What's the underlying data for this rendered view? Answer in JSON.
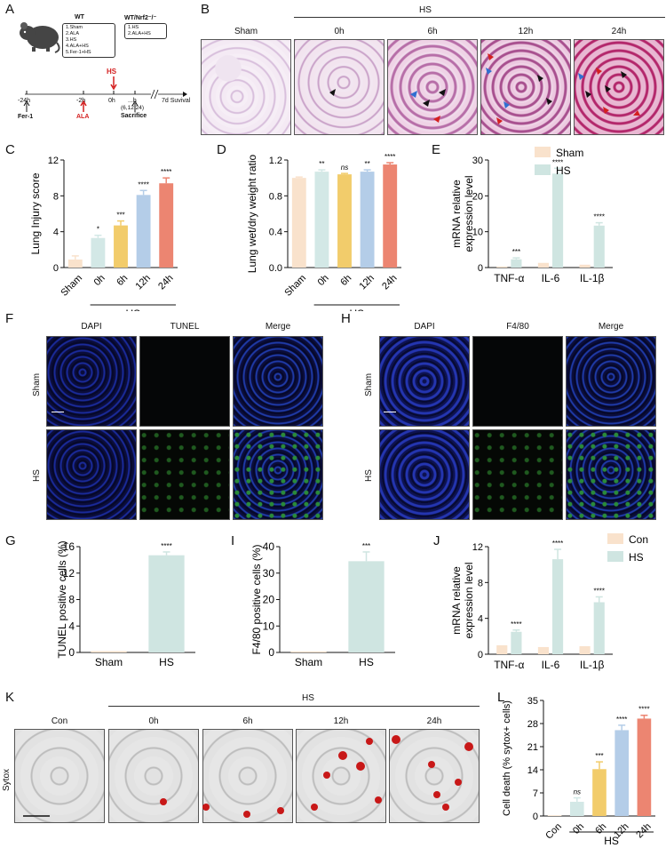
{
  "panel_labels": [
    "A",
    "B",
    "C",
    "D",
    "E",
    "F",
    "G",
    "H",
    "I",
    "J",
    "K",
    "L"
  ],
  "panel_a": {
    "wt_title": "WT",
    "wt_groups": [
      "1.Sham",
      "2.ALA",
      "3.HS",
      "4.ALA+HS",
      "5.Fer-1+HS"
    ],
    "ko_title": "WT/Nrf2⁻/⁻",
    "ko_groups": [
      "1.HS",
      "2.ALA+HS"
    ],
    "timeline_ticks": [
      "-24h",
      "-2h",
      "0h",
      "...h"
    ],
    "hs_marker": "HS",
    "fer1": "Fer-1",
    "ala": "ALA",
    "sacrifice_times": "(6,12,24)",
    "sacrifice": "Sacrifice",
    "survival": "7d Suvival"
  },
  "panel_b": {
    "group_label": "HS",
    "columns": [
      "Sham",
      "0h",
      "6h",
      "12h",
      "24h"
    ]
  },
  "colors": {
    "sham": "#f9e2cc",
    "h0": "#d3e8e6",
    "h6": "#f2cc6b",
    "h12": "#b4cde8",
    "h24": "#ec8571",
    "hs": "#cfe5e1",
    "black": "#111111"
  },
  "chart_data": [
    {
      "type": "bar",
      "panel": "C",
      "ylabel": "Lung Injury score",
      "ylim": [
        0,
        12
      ],
      "yticks": [
        "0",
        "4",
        "8",
        "12"
      ],
      "categories": [
        "Sham",
        "0h",
        "6h",
        "12h",
        "24h"
      ],
      "values": [
        0.9,
        3.3,
        4.7,
        8.1,
        9.4
      ],
      "errors": [
        0.4,
        0.3,
        0.5,
        0.5,
        0.6
      ],
      "sig": [
        "",
        "*",
        "***",
        "****",
        "****"
      ],
      "group_label": "HS"
    },
    {
      "type": "bar",
      "panel": "D",
      "ylabel": "Lung wet/dry weight ratio",
      "ylim": [
        0,
        1.2
      ],
      "yticks": [
        "0.0",
        "0.4",
        "0.8",
        "1.2"
      ],
      "categories": [
        "Sham",
        "0h",
        "6h",
        "12h",
        "24h"
      ],
      "values": [
        1.0,
        1.07,
        1.04,
        1.07,
        1.15
      ],
      "errors": [
        0.01,
        0.02,
        0.01,
        0.02,
        0.02
      ],
      "sig": [
        "",
        "**",
        "ns",
        "**",
        "****"
      ],
      "group_label": "HS"
    },
    {
      "type": "bar",
      "panel": "E",
      "ylabel": "mRNA relative expression level",
      "ylim": [
        0,
        30
      ],
      "yticks": [
        "0",
        "10",
        "20",
        "30"
      ],
      "categories": [
        "TNF-α",
        "IL-6",
        "IL-1β"
      ],
      "series": [
        {
          "name": "Sham",
          "values": [
            0.3,
            1.3,
            0.8
          ]
        },
        {
          "name": "HS",
          "values": [
            2.3,
            26.2,
            11.7
          ]
        }
      ],
      "errors": [
        0.4,
        1.5,
        0.8
      ],
      "sig": [
        "***",
        "****",
        "****"
      ]
    },
    {
      "type": "bar",
      "panel": "G",
      "ylabel": "TUNEL positive cells (%)",
      "ylim": [
        0,
        16
      ],
      "yticks": [
        "0",
        "4",
        "8",
        "12",
        "16"
      ],
      "categories": [
        "Sham",
        "HS"
      ],
      "values": [
        0.2,
        14.7
      ],
      "errors": [
        0,
        0.5
      ],
      "sig": [
        "",
        "****"
      ]
    },
    {
      "type": "bar",
      "panel": "I",
      "ylabel": "F4/80 positive cells (%)",
      "ylim": [
        0,
        40
      ],
      "yticks": [
        "0",
        "10",
        "20",
        "30",
        "40"
      ],
      "categories": [
        "Sham",
        "HS"
      ],
      "values": [
        0.4,
        34.5
      ],
      "errors": [
        0,
        3.5
      ],
      "sig": [
        "",
        "***"
      ]
    },
    {
      "type": "bar",
      "panel": "J",
      "ylabel": "mRNA relative expression level",
      "ylim": [
        0,
        12
      ],
      "yticks": [
        "0",
        "4",
        "8",
        "12"
      ],
      "categories": [
        "TNF-α",
        "IL-6",
        "IL-1β"
      ],
      "series": [
        {
          "name": "Con",
          "values": [
            1.0,
            0.8,
            0.9
          ]
        },
        {
          "name": "HS",
          "values": [
            2.5,
            10.6,
            5.8
          ]
        }
      ],
      "errors": [
        0.2,
        1.1,
        0.6
      ],
      "sig": [
        "****",
        "****",
        "****"
      ]
    },
    {
      "type": "bar",
      "panel": "L",
      "ylabel": "Cell death (% sytox+ cells)",
      "ylim": [
        0,
        35
      ],
      "yticks": [
        "0",
        "7",
        "14",
        "21",
        "28",
        "35"
      ],
      "categories": [
        "Con",
        "0h",
        "6h",
        "12h",
        "24h"
      ],
      "values": [
        0.2,
        4.3,
        14.2,
        26.0,
        29.5
      ],
      "errors": [
        0,
        1.2,
        2.2,
        1.5,
        1.0
      ],
      "sig": [
        "",
        "ns",
        "***",
        "****",
        "****"
      ],
      "group_label": "HS"
    }
  ],
  "panel_f": {
    "columns": [
      "DAPI",
      "TUNEL",
      "Merge"
    ],
    "rows": [
      "Sham",
      "HS"
    ]
  },
  "panel_h": {
    "columns": [
      "DAPI",
      "F4/80",
      "Merge"
    ],
    "rows": [
      "Sham",
      "HS"
    ]
  },
  "panel_k": {
    "group_label": "HS",
    "columns": [
      "Con",
      "0h",
      "6h",
      "12h",
      "24h"
    ],
    "row_label": "Sytox"
  }
}
